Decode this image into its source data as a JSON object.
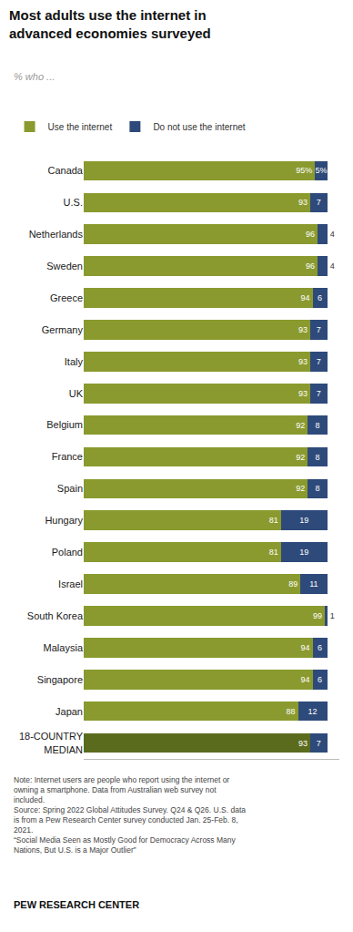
{
  "chart_data": {
    "type": "bar",
    "orientation": "horizontal",
    "stacked": true,
    "data_labels": true,
    "tick_labels": "y",
    "grid": false,
    "title": "Most adults use the internet in\nadvanced economies surveyed",
    "subtitle": "% who ...",
    "categories": [
      "Canada",
      "U.S.",
      "Netherlands",
      "Sweden",
      "Greece",
      "Germany",
      "Italy",
      "UK",
      "Belgium",
      "France",
      "Spain",
      "Hungary",
      "Poland",
      "Israel",
      "South Korea",
      "Malaysia",
      "Singapore",
      "Japan",
      "18-COUNTRY\nMEDIAN"
    ],
    "series": [
      {
        "name": "Use the internet",
        "colors": [
          "#8a9a2e",
          "#8a9a2e",
          "#8a9a2e",
          "#8a9a2e",
          "#8a9a2e",
          "#8a9a2e",
          "#8a9a2e",
          "#8a9a2e",
          "#8a9a2e",
          "#8a9a2e",
          "#8a9a2e",
          "#8a9a2e",
          "#8a9a2e",
          "#8a9a2e",
          "#8a9a2e",
          "#8a9a2e",
          "#8a9a2e",
          "#8a9a2e",
          "#5a6b1e"
        ],
        "values": [
          95,
          93,
          96,
          96,
          94,
          93,
          93,
          93,
          92,
          92,
          92,
          81,
          81,
          89,
          99,
          94,
          94,
          88,
          93
        ],
        "value_labels": [
          "95%",
          "93",
          "96",
          "96",
          "94",
          "93",
          "93",
          "93",
          "92",
          "92",
          "92",
          "81",
          "81",
          "89",
          "99",
          "94",
          "94",
          "88",
          "93"
        ]
      },
      {
        "name": "Do not use the internet",
        "color": "#2e4a7a",
        "values": [
          5,
          7,
          4,
          4,
          6,
          7,
          7,
          7,
          8,
          8,
          8,
          19,
          19,
          11,
          1,
          6,
          6,
          12,
          7
        ],
        "value_labels": [
          "5%",
          "7",
          "4",
          "4",
          "6",
          "7",
          "7",
          "7",
          "8",
          "8",
          "8",
          "19",
          "19",
          "11",
          "1",
          "6",
          "6",
          "12",
          "7"
        ]
      }
    ],
    "xlim": [
      0,
      105
    ],
    "legend": "top",
    "annotations": [
      "Note: Internet users are people who report using the internet or\nowning a smartphone. Data from Australian web survey not\nincluded.\nSource: Spring 2022 Global Attitudes Survey. Q24 & Q26. U.S. data\nis from a Pew Research Center survey conducted Jan. 25-Feb. 8,\n2021.\n“Social Media Seen as Mostly Good for Democracy Across Many\nNations, But U.S. is a Major Outlier”",
      "PEW RESEARCH CENTER"
    ]
  }
}
